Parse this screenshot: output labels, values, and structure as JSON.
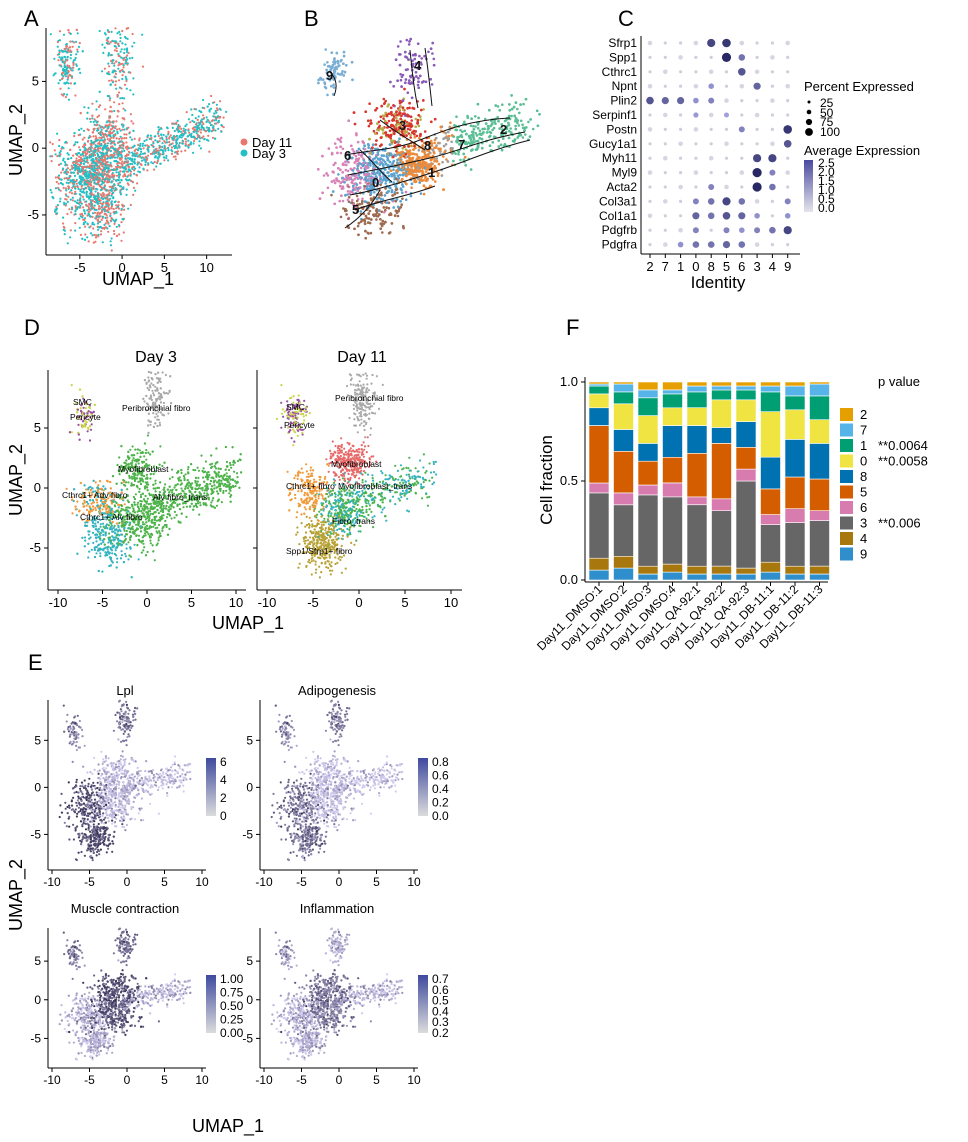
{
  "panels": {
    "A": {
      "letter": "A",
      "xlabel": "UMAP_1",
      "ylabel": "UMAP_2",
      "xticks": [
        -5,
        0,
        5,
        10
      ],
      "yticks": [
        -5,
        0,
        5
      ],
      "xlim": [
        -9,
        13
      ],
      "ylim": [
        -8,
        9
      ],
      "legend": [
        {
          "label": "Day 11",
          "color": "#e8786f"
        },
        {
          "label": "Day 3",
          "color": "#22bfc4"
        }
      ]
    },
    "B": {
      "letter": "B",
      "clusters": [
        {
          "label": "0",
          "color": "#5ba3d0"
        },
        {
          "label": "1",
          "color": "#eb8a3a"
        },
        {
          "label": "2",
          "color": "#5bbf95"
        },
        {
          "label": "3",
          "color": "#d9362e"
        },
        {
          "label": "4",
          "color": "#8a5bb8"
        },
        {
          "label": "5",
          "color": "#9e6b50"
        },
        {
          "label": "6",
          "color": "#d982b7"
        },
        {
          "label": "7",
          "color": "#9e9e9e"
        },
        {
          "label": "8",
          "color": "#b5ad4a"
        },
        {
          "label": "9",
          "color": "#7aaed4"
        }
      ]
    },
    "C": {
      "letter": "C",
      "xlabel": "Identity",
      "identities": [
        "2",
        "7",
        "1",
        "0",
        "8",
        "5",
        "6",
        "3",
        "4",
        "9"
      ],
      "genes": [
        "Sfrp1",
        "Spp1",
        "Cthrc1",
        "Npnt",
        "Plin2",
        "Serpinf1",
        "Postn",
        "Gucy1a1",
        "Myh11",
        "Myl9",
        "Acta2",
        "Col3a1",
        "Col1a1",
        "Pdgfrb",
        "Pdgfra"
      ],
      "size_legend_title": "Percent Expressed",
      "size_legend": [
        "25",
        "50",
        "75",
        "100"
      ],
      "color_legend_title": "Average Expression",
      "color_legend": [
        "2.5",
        "2.0",
        "1.5",
        "1.0",
        "0.5",
        "0.0"
      ],
      "highlights": {
        "Sfrp1": {
          "8": 0.8,
          "5": 0.9
        },
        "Spp1": {
          "5": 1.0,
          "6": 0.5
        },
        "Cthrc1": {
          "6": 0.7
        },
        "Npnt": {
          "3": 0.6,
          "8": 0.3
        },
        "Plin2": {
          "2": 0.7,
          "7": 0.6,
          "1": 0.6,
          "0": 0.3,
          "8": 0.4
        },
        "Serpinf1": {
          "0": 0.25,
          "5": 0.2
        },
        "Postn": {
          "6": 0.4,
          "9": 0.9
        },
        "Gucy1a1": {
          "9": 0.7
        },
        "Myh11": {
          "3": 0.8,
          "4": 0.8
        },
        "Myl9": {
          "3": 1.0,
          "4": 0.4
        },
        "Acta2": {
          "3": 1.0,
          "4": 0.5,
          "8": 0.4
        },
        "Col3a1": {
          "0": 0.4,
          "8": 0.5,
          "5": 0.8,
          "6": 0.5,
          "9": 0.4
        },
        "Col1a1": {
          "0": 0.6,
          "8": 0.5,
          "5": 0.7,
          "6": 0.6,
          "3": 0.3,
          "9": 0.3
        },
        "Pdgfrb": {
          "0": 0.4,
          "5": 0.4,
          "6": 0.3,
          "3": 0.4,
          "4": 0.5,
          "9": 0.8
        },
        "Pdgfra": {
          "0": 0.5,
          "8": 0.5,
          "5": 0.6,
          "6": 0.5,
          "1": 0.3
        }
      }
    },
    "D": {
      "letter": "D",
      "xlabel": "UMAP_1",
      "ylabel": "UMAP_2",
      "xticks": [
        -10,
        -5,
        0,
        5,
        10
      ],
      "yticks": [
        -5,
        0,
        5
      ],
      "titles": [
        "Day 3",
        "Day 11"
      ],
      "labels_day3": [
        "SMC",
        "Pericyte",
        "Peribronchial fibro",
        "Myofibroblast",
        "Cthrc1+ Adv fibro",
        "Alv fibro_trans",
        "Cthrc1+ Alv fibro"
      ],
      "labels_day11": [
        "SMC",
        "Pericyte",
        "Peribronchial fibro",
        "Myofibroblast",
        "Cthrc1+ fibro",
        "Myofibroblast_trans",
        "Fibro_trans",
        "Spp1/Sfrp1+ fibro"
      ]
    },
    "E": {
      "letter": "E",
      "xlabel": "UMAP_1",
      "ylabel": "UMAP_2",
      "xticks": [
        -10,
        -5,
        0,
        5,
        10
      ],
      "yticks": [
        -5,
        0,
        5
      ],
      "subpanels": [
        {
          "title": "Lpl",
          "scale": [
            "6",
            "4",
            "2",
            "0"
          ]
        },
        {
          "title": "Adipogenesis",
          "scale": [
            "0.8",
            "0.6",
            "0.4",
            "0.2",
            "0.0"
          ]
        },
        {
          "title": "Muscle contraction",
          "scale": [
            "1.00",
            "0.75",
            "0.50",
            "0.25",
            "0.00"
          ]
        },
        {
          "title": "Inflammation",
          "scale": [
            "0.7",
            "0.6",
            "0.5",
            "0.4",
            "0.3",
            "0.2"
          ]
        }
      ]
    },
    "F": {
      "letter": "F",
      "ylabel": "Cell fraction",
      "yticks": [
        "0.0",
        "0.5",
        "1.0"
      ],
      "legend_title": "p value"
    }
  },
  "chart_data": {
    "type": "bar",
    "stacked": true,
    "categories": [
      "Day11_DMSO:1",
      "Day11_DMSO:2",
      "Day11_DMSO:3",
      "Day11_DMSO:4",
      "Day11_QA-92:1",
      "Day11_QA-92:2",
      "Day11_QA-92:3",
      "Day11_DB-11:1",
      "Day11_DB-11:2",
      "Day11_DB-11:3"
    ],
    "ylabel": "Cell fraction",
    "ylim": [
      0,
      1
    ],
    "stack_order_bottom_to_top": [
      "9",
      "4",
      "3",
      "6",
      "5",
      "8",
      "0",
      "1",
      "7",
      "2"
    ],
    "series": [
      {
        "name": "9",
        "color": "#2f8fcc",
        "values": [
          0.05,
          0.06,
          0.03,
          0.04,
          0.03,
          0.03,
          0.03,
          0.04,
          0.03,
          0.03
        ]
      },
      {
        "name": "4",
        "color": "#a8780f",
        "values": [
          0.06,
          0.06,
          0.04,
          0.04,
          0.04,
          0.04,
          0.03,
          0.05,
          0.04,
          0.04
        ]
      },
      {
        "name": "3",
        "color": "#666666",
        "values": [
          0.33,
          0.26,
          0.36,
          0.34,
          0.31,
          0.28,
          0.44,
          0.19,
          0.22,
          0.23
        ]
      },
      {
        "name": "6",
        "color": "#d87cb0",
        "values": [
          0.05,
          0.06,
          0.05,
          0.07,
          0.04,
          0.06,
          0.06,
          0.05,
          0.07,
          0.05
        ]
      },
      {
        "name": "5",
        "color": "#d45d00",
        "values": [
          0.29,
          0.21,
          0.12,
          0.13,
          0.22,
          0.28,
          0.11,
          0.13,
          0.16,
          0.16
        ]
      },
      {
        "name": "8",
        "color": "#0072b2",
        "values": [
          0.09,
          0.11,
          0.09,
          0.16,
          0.14,
          0.08,
          0.13,
          0.16,
          0.19,
          0.18
        ]
      },
      {
        "name": "0",
        "color": "#f0e442",
        "values": [
          0.07,
          0.13,
          0.14,
          0.09,
          0.09,
          0.14,
          0.11,
          0.23,
          0.15,
          0.12
        ]
      },
      {
        "name": "1",
        "color": "#009e73",
        "values": [
          0.04,
          0.06,
          0.09,
          0.07,
          0.08,
          0.05,
          0.05,
          0.1,
          0.07,
          0.12
        ]
      },
      {
        "name": "7",
        "color": "#56b4e9",
        "values": [
          0.01,
          0.04,
          0.04,
          0.02,
          0.03,
          0.02,
          0.02,
          0.03,
          0.05,
          0.06
        ]
      },
      {
        "name": "2",
        "color": "#e69f00",
        "values": [
          0.01,
          0.01,
          0.04,
          0.04,
          0.02,
          0.02,
          0.02,
          0.02,
          0.02,
          0.01
        ]
      }
    ],
    "legend_order": [
      "2",
      "7",
      "1",
      "0",
      "8",
      "5",
      "6",
      "3",
      "4",
      "9"
    ],
    "pvalues": {
      "1": "**0.0064",
      "0": "**0.0058",
      "3": "**0.006"
    }
  }
}
